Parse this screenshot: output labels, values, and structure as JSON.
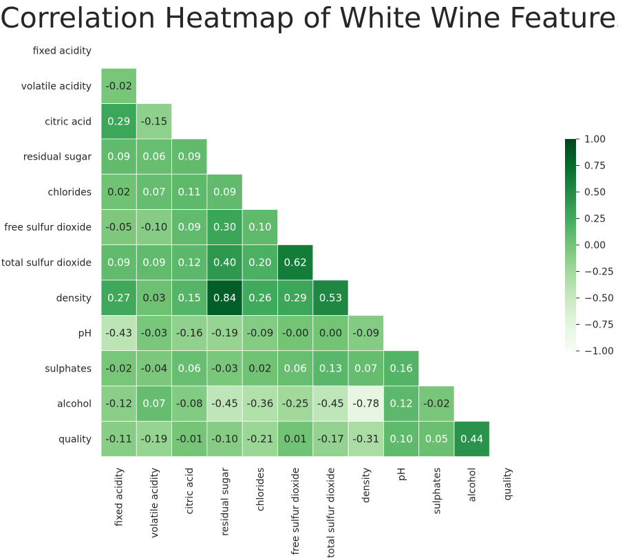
{
  "chart_data": {
    "type": "heatmap",
    "title": "Correlation Heatmap of White Wine Features",
    "variables": [
      "fixed acidity",
      "volatile acidity",
      "citric acid",
      "residual sugar",
      "chlorides",
      "free sulfur dioxide",
      "total sulfur dioxide",
      "density",
      "pH",
      "sulphates",
      "alcohol",
      "quality"
    ],
    "mask": "upper triangle and diagonal",
    "lower_triangle": [
      [],
      [
        -0.02
      ],
      [
        0.29,
        -0.15
      ],
      [
        0.09,
        0.06,
        0.09
      ],
      [
        0.02,
        0.07,
        0.11,
        0.09
      ],
      [
        -0.05,
        -0.1,
        0.09,
        0.3,
        0.1
      ],
      [
        0.09,
        0.09,
        0.12,
        0.4,
        0.2,
        0.62
      ],
      [
        0.27,
        0.03,
        0.15,
        0.84,
        0.26,
        0.29,
        0.53
      ],
      [
        -0.43,
        -0.03,
        -0.16,
        -0.19,
        -0.09,
        -0.0,
        0.0,
        -0.09
      ],
      [
        -0.02,
        -0.04,
        0.06,
        -0.03,
        0.02,
        0.06,
        0.13,
        0.07,
        0.16
      ],
      [
        -0.12,
        0.07,
        -0.08,
        -0.45,
        -0.36,
        -0.25,
        -0.45,
        -0.78,
        0.12,
        -0.02
      ],
      [
        -0.11,
        -0.19,
        -0.01,
        -0.1,
        -0.21,
        0.01,
        -0.17,
        -0.31,
        0.1,
        0.05,
        0.44
      ]
    ],
    "value_labels": [
      [],
      [
        "-0.02"
      ],
      [
        "0.29",
        "-0.15"
      ],
      [
        "0.09",
        "0.06",
        "0.09"
      ],
      [
        "0.02",
        "0.07",
        "0.11",
        "0.09"
      ],
      [
        "-0.05",
        "-0.10",
        "0.09",
        "0.30",
        "0.10"
      ],
      [
        "0.09",
        "0.09",
        "0.12",
        "0.40",
        "0.20",
        "0.62"
      ],
      [
        "0.27",
        "0.03",
        "0.15",
        "0.84",
        "0.26",
        "0.29",
        "0.53"
      ],
      [
        "-0.43",
        "-0.03",
        "-0.16",
        "-0.19",
        "-0.09",
        "-0.00",
        "0.00",
        "-0.09"
      ],
      [
        "-0.02",
        "-0.04",
        "0.06",
        "-0.03",
        "0.02",
        "0.06",
        "0.13",
        "0.07",
        "0.16"
      ],
      [
        "-0.12",
        "0.07",
        "-0.08",
        "-0.45",
        "-0.36",
        "-0.25",
        "-0.45",
        "-0.78",
        "0.12",
        "-0.02"
      ],
      [
        "-0.11",
        "-0.19",
        "-0.01",
        "-0.10",
        "-0.21",
        "0.01",
        "-0.17",
        "-0.31",
        "0.10",
        "0.05",
        "0.44"
      ]
    ],
    "colorbar": {
      "range": [
        -1,
        1
      ],
      "ticks": [
        1.0,
        0.75,
        0.5,
        0.25,
        0.0,
        -0.25,
        -0.5,
        -0.75,
        -1.0
      ],
      "tick_labels": [
        "1.00",
        "0.75",
        "0.50",
        "0.25",
        "0.00",
        "−0.25",
        "−0.50",
        "−0.75",
        "−1.00"
      ],
      "colormap": [
        "#f7fcf5",
        "#e5f5e0",
        "#c7e9c0",
        "#a1d99b",
        "#74c476",
        "#41ab5d",
        "#238b45",
        "#006d2c",
        "#00441b"
      ]
    },
    "grid": false
  }
}
